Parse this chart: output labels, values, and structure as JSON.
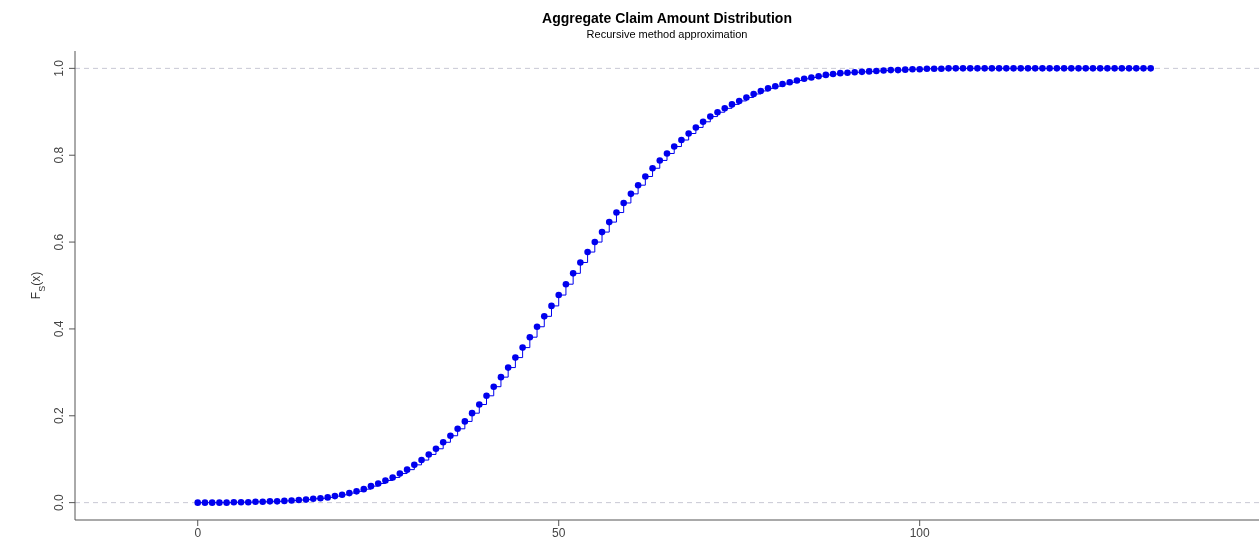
{
  "chart_data": {
    "type": "step",
    "title": "Aggregate Claim Amount Distribution",
    "subtitle": "Recursive method approximation",
    "ylabel": "F$_{S}$(x)",
    "x": [
      0,
      1,
      2,
      3,
      4,
      5,
      6,
      7,
      8,
      9,
      10,
      11,
      12,
      13,
      14,
      15,
      16,
      17,
      18,
      19,
      20,
      21,
      22,
      23,
      24,
      25,
      26,
      27,
      28,
      29,
      30,
      31,
      32,
      33,
      34,
      35,
      36,
      37,
      38,
      39,
      40,
      41,
      42,
      43,
      44,
      45,
      46,
      47,
      48,
      49,
      50,
      51,
      52,
      53,
      54,
      55,
      56,
      57,
      58,
      59,
      60,
      61,
      62,
      63,
      64,
      65,
      66,
      67,
      68,
      69,
      70,
      71,
      72,
      73,
      74,
      75,
      76,
      77,
      78,
      79,
      80,
      81,
      82,
      83,
      84,
      85,
      86,
      87,
      88,
      89,
      90,
      91,
      92,
      93,
      94,
      95,
      96,
      97,
      98,
      99,
      100,
      101,
      102,
      103,
      104,
      105,
      106,
      107,
      108,
      109,
      110,
      111,
      112,
      113,
      114,
      115,
      116,
      117,
      118,
      119,
      120,
      121,
      122,
      123,
      124,
      125,
      126,
      127,
      128,
      129,
      130,
      131,
      132
    ],
    "series": [
      {
        "color": "#0000ee",
        "values": [
          0.0,
          0.0,
          0.0,
          0.0,
          0.0,
          0.001,
          0.001,
          0.001,
          0.002,
          0.002,
          0.003,
          0.003,
          0.004,
          0.005,
          0.006,
          0.007,
          0.009,
          0.01,
          0.012,
          0.015,
          0.018,
          0.022,
          0.026,
          0.031,
          0.038,
          0.044,
          0.051,
          0.058,
          0.067,
          0.076,
          0.087,
          0.098,
          0.111,
          0.124,
          0.139,
          0.154,
          0.17,
          0.187,
          0.206,
          0.226,
          0.246,
          0.267,
          0.289,
          0.311,
          0.334,
          0.357,
          0.381,
          0.405,
          0.429,
          0.453,
          0.478,
          0.503,
          0.528,
          0.553,
          0.577,
          0.6,
          0.623,
          0.646,
          0.668,
          0.69,
          0.711,
          0.731,
          0.751,
          0.77,
          0.788,
          0.804,
          0.82,
          0.835,
          0.85,
          0.864,
          0.877,
          0.889,
          0.899,
          0.908,
          0.917,
          0.925,
          0.933,
          0.941,
          0.948,
          0.954,
          0.959,
          0.964,
          0.968,
          0.972,
          0.976,
          0.979,
          0.982,
          0.985,
          0.987,
          0.989,
          0.99,
          0.991,
          0.992,
          0.993,
          0.994,
          0.995,
          0.996,
          0.996,
          0.997,
          0.998,
          0.998,
          0.999,
          0.999,
          0.999,
          1.0,
          1,
          1,
          1,
          1,
          1,
          1,
          1,
          1,
          1,
          1,
          1,
          1,
          1,
          1,
          1,
          1,
          1,
          1,
          1,
          1,
          1,
          1,
          1,
          1,
          1,
          1,
          1,
          1
        ]
      }
    ],
    "xlim": [
      -17,
      147
    ],
    "xticks": [
      0,
      50,
      100
    ],
    "ylim": [
      -0.04,
      1.04
    ],
    "yticks": [
      {
        "value": 0,
        "label": "0.0"
      },
      {
        "value": 0.2,
        "label": "0.2"
      },
      {
        "value": 0.4,
        "label": "0.4"
      },
      {
        "value": 0.6,
        "label": "0.6"
      },
      {
        "value": 0.8,
        "label": "0.8"
      },
      {
        "value": 1,
        "label": "1.0"
      }
    ],
    "marker": "circle",
    "grid": false,
    "legend": false,
    "ref_lines": [
      {
        "axis": "y",
        "value": 0,
        "color": "#c8c8d4",
        "line_style": "dashed"
      },
      {
        "axis": "y",
        "value": 1,
        "color": "#c8c8d4",
        "line_style": "dashed"
      }
    ]
  }
}
